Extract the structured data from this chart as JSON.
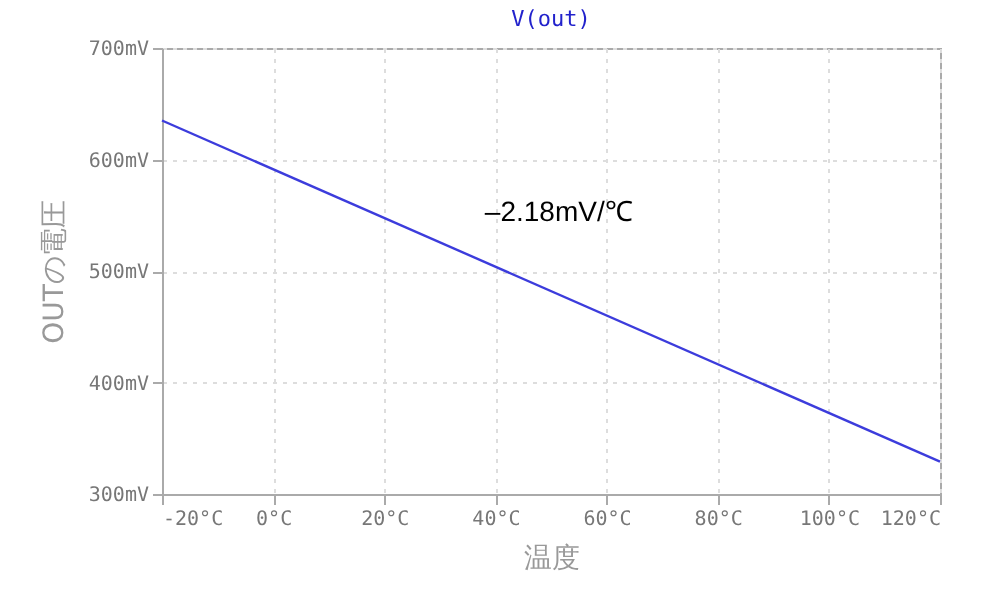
{
  "chart_data": {
    "type": "line",
    "title": "V(out)",
    "xlabel": "温度",
    "ylabel": "OUTの電圧",
    "x": [
      -20,
      120
    ],
    "series": [
      {
        "color": "#3c3cdc",
        "values": [
          635,
          329
        ]
      }
    ],
    "xlim": [
      -20,
      120
    ],
    "ylim": [
      300,
      700
    ],
    "xticks": [
      {
        "value": -20,
        "label": "-20°C"
      },
      {
        "value": 0,
        "label": "0°C"
      },
      {
        "value": 20,
        "label": "20°C"
      },
      {
        "value": 40,
        "label": "40°C"
      },
      {
        "value": 60,
        "label": "60°C"
      },
      {
        "value": 80,
        "label": "80°C"
      },
      {
        "value": 100,
        "label": "100°C"
      },
      {
        "value": 120,
        "label": "120°C"
      }
    ],
    "yticks": [
      {
        "value": 300,
        "label": "300mV"
      },
      {
        "value": 400,
        "label": "400mV"
      },
      {
        "value": 500,
        "label": "500mV"
      },
      {
        "value": 600,
        "label": "600mV"
      },
      {
        "value": 700,
        "label": "700mV"
      }
    ],
    "annotations": [
      "–2.18mV/℃"
    ],
    "grid": true,
    "line_style": "solid",
    "marker": "none"
  }
}
